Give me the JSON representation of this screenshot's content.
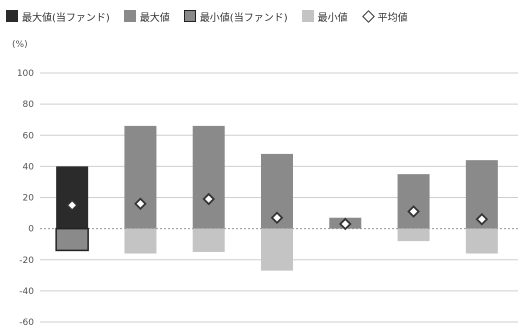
{
  "colors": {
    "max_fund": "#2b2b2b",
    "max": "#8a8a8a",
    "min_fund": "#8a8a8a",
    "min": "#c4c4c4",
    "grid": "#cfcfcf",
    "axis_text": "#555555"
  },
  "chart_data": {
    "type": "bar",
    "unit_label": "(%)",
    "legend": {
      "max_fund": "最大値(当ファンド)",
      "max": "最大値",
      "min_fund": "最小値(当ファンド)",
      "min": "最小値",
      "avg": "平均値"
    },
    "ylim": [
      -60,
      100
    ],
    "yticks": [
      100,
      80,
      60,
      40,
      20,
      0,
      -20,
      -40,
      -60
    ],
    "categories": [
      "",
      "",
      "",
      "",
      "",
      "",
      ""
    ],
    "series": [
      {
        "name": "最大値",
        "values": [
          40,
          66,
          66,
          48,
          7,
          35,
          44
        ]
      },
      {
        "name": "最小値",
        "values": [
          -14,
          -16,
          -15,
          -27,
          0,
          -8,
          -16
        ]
      },
      {
        "name": "平均値",
        "values": [
          15,
          16,
          19,
          7,
          3,
          11,
          6
        ]
      }
    ],
    "highlight_index": 0,
    "grid": true
  }
}
